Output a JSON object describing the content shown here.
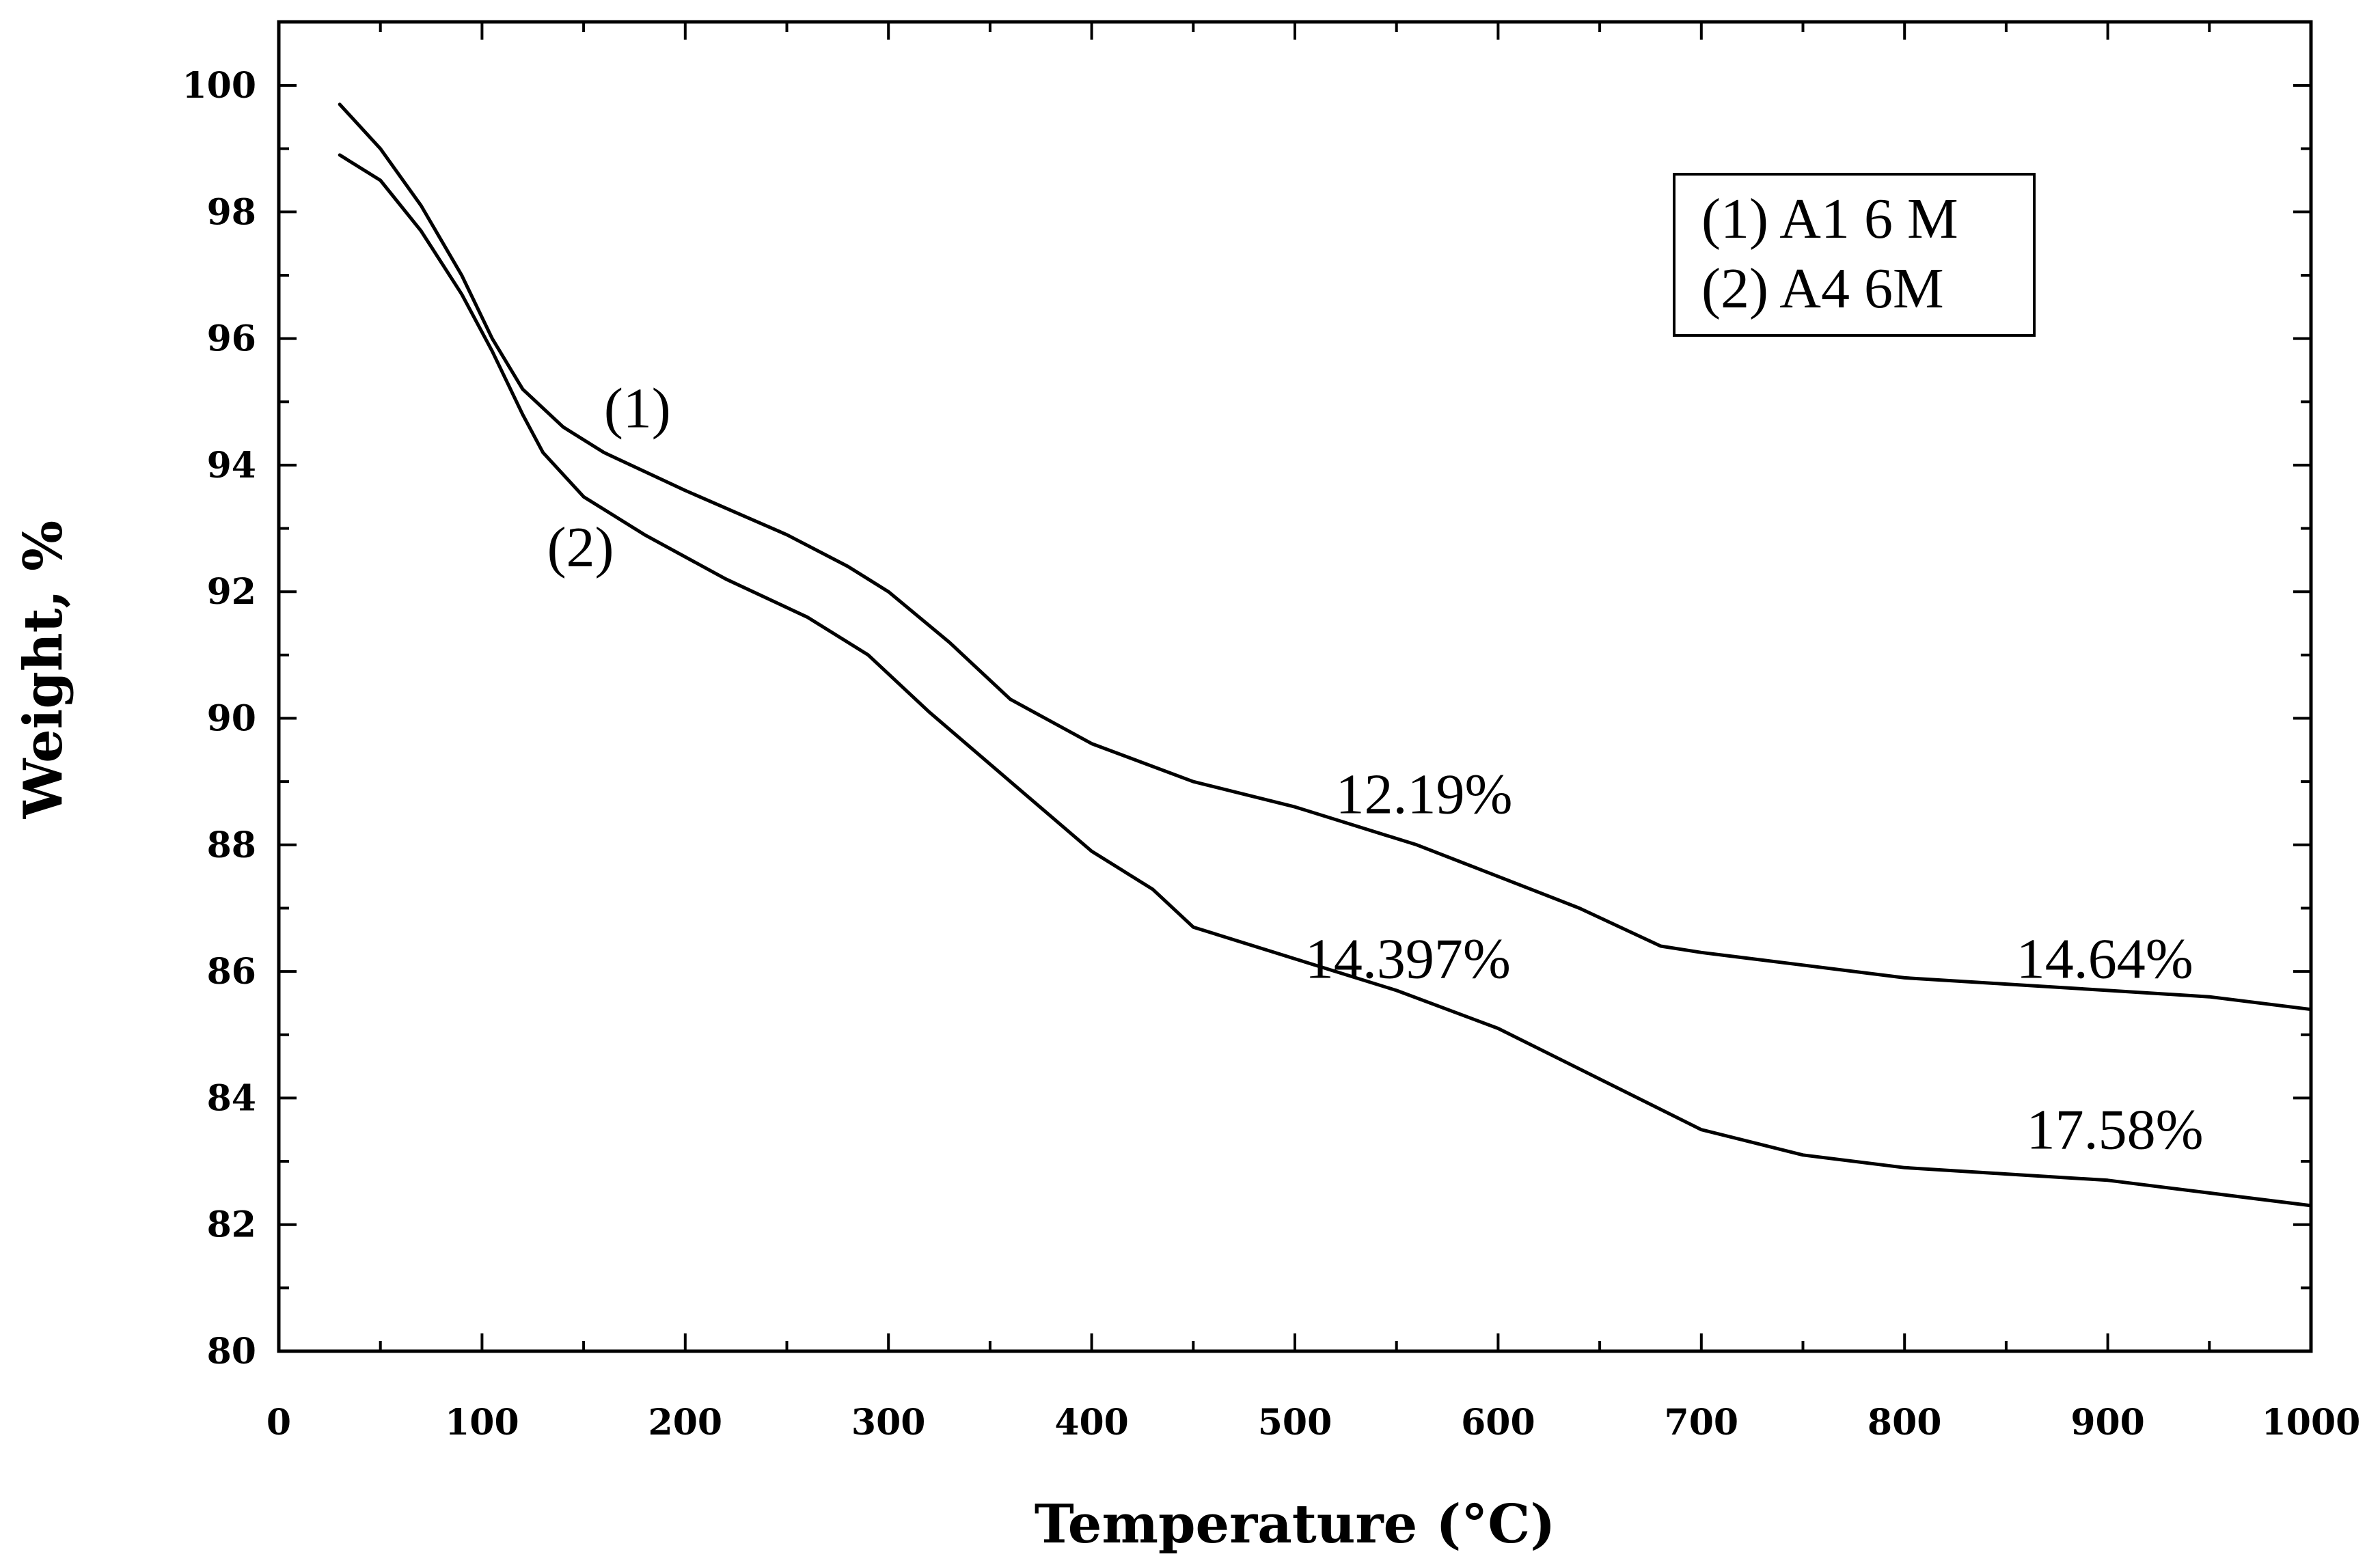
{
  "chart_data": {
    "type": "line",
    "title": "",
    "xlabel": "Temperature (°C)",
    "ylabel": "Weight, %",
    "xlim": [
      0,
      1000
    ],
    "ylim": [
      80,
      101
    ],
    "x_ticks": [
      0,
      100,
      200,
      300,
      400,
      500,
      600,
      700,
      800,
      900,
      1000
    ],
    "y_ticks": [
      80,
      82,
      84,
      86,
      88,
      90,
      92,
      94,
      96,
      98,
      100
    ],
    "grid": false,
    "legend": {
      "placement": "top-right",
      "entries": [
        "(1) A1 6 M",
        "(2) A4 6M"
      ]
    },
    "series": [
      {
        "name": "(1) A1 6 M",
        "label": "(1)",
        "x": [
          30,
          50,
          70,
          90,
          105,
          120,
          140,
          160,
          200,
          250,
          280,
          300,
          330,
          360,
          400,
          450,
          500,
          530,
          560,
          600,
          640,
          680,
          700,
          750,
          800,
          850,
          900,
          950,
          1000
        ],
        "y": [
          99.7,
          99.0,
          98.1,
          97.0,
          96.0,
          95.2,
          94.6,
          94.2,
          93.6,
          92.9,
          92.4,
          92.0,
          91.2,
          90.3,
          89.6,
          89.0,
          88.6,
          88.3,
          88.0,
          87.5,
          87.0,
          86.4,
          86.3,
          86.1,
          85.9,
          85.8,
          85.7,
          85.6,
          85.4
        ]
      },
      {
        "name": "(2) A4 6M",
        "label": "(2)",
        "x": [
          30,
          50,
          70,
          90,
          105,
          120,
          130,
          150,
          180,
          220,
          260,
          290,
          320,
          360,
          400,
          430,
          450,
          500,
          550,
          600,
          650,
          700,
          750,
          800,
          850,
          900,
          950,
          1000
        ],
        "y": [
          98.9,
          98.5,
          97.7,
          96.7,
          95.8,
          94.8,
          94.2,
          93.5,
          92.9,
          92.2,
          91.6,
          91.0,
          90.1,
          89.0,
          87.9,
          87.3,
          86.7,
          86.2,
          85.7,
          85.1,
          84.3,
          83.5,
          83.1,
          82.9,
          82.8,
          82.7,
          82.5,
          82.3
        ]
      }
    ],
    "annotations": [
      {
        "text": "12.19%",
        "x": 520,
        "y": 88.5,
        "anchor": "start"
      },
      {
        "text": "14.397%",
        "x": 505,
        "y": 85.9,
        "anchor": "start"
      },
      {
        "text": "14.64%",
        "x": 855,
        "y": 85.9,
        "anchor": "start"
      },
      {
        "text": "17.58%",
        "x": 860,
        "y": 83.2,
        "anchor": "start"
      },
      {
        "text": "(1)",
        "x": 160,
        "y": 94.6,
        "anchor": "start"
      },
      {
        "text": "(2)",
        "x": 132,
        "y": 92.4,
        "anchor": "start"
      }
    ]
  }
}
